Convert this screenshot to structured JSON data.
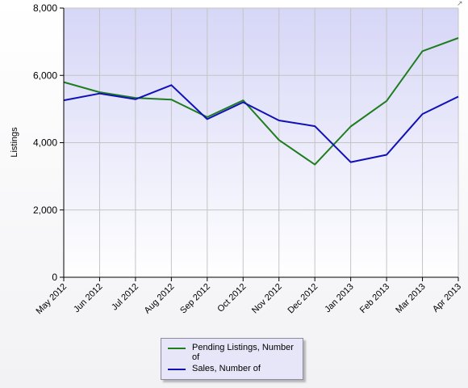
{
  "chart_data": {
    "type": "line",
    "title": "",
    "xlabel": "",
    "ylabel": "Listings",
    "categories": [
      "May 2012",
      "Jun 2012",
      "Jul 2012",
      "Aug 2012",
      "Sep 2012",
      "Oct 2012",
      "Nov 2012",
      "Dec 2012",
      "Jan 2013",
      "Feb 2013",
      "Mar 2013",
      "Apr 2013"
    ],
    "ylim": [
      0,
      8000
    ],
    "yticks": [
      0,
      2000,
      4000,
      6000,
      8000
    ],
    "ytick_labels": [
      "0",
      "2,000",
      "4,000",
      "6,000",
      "8,000"
    ],
    "grid": true,
    "legend_position": "bottom",
    "series": [
      {
        "name": "Pending Listings, Number of",
        "color": "#1f7d1f",
        "values": [
          5800,
          5500,
          5330,
          5280,
          4760,
          5260,
          4080,
          3350,
          4480,
          5240,
          6720,
          7110
        ]
      },
      {
        "name": "Sales, Number of",
        "color": "#1010b8",
        "values": [
          5260,
          5460,
          5290,
          5710,
          4700,
          5200,
          4660,
          4490,
          3420,
          3640,
          4850,
          5370
        ]
      }
    ]
  },
  "icons": {
    "corner": "resize-corner-icon"
  }
}
